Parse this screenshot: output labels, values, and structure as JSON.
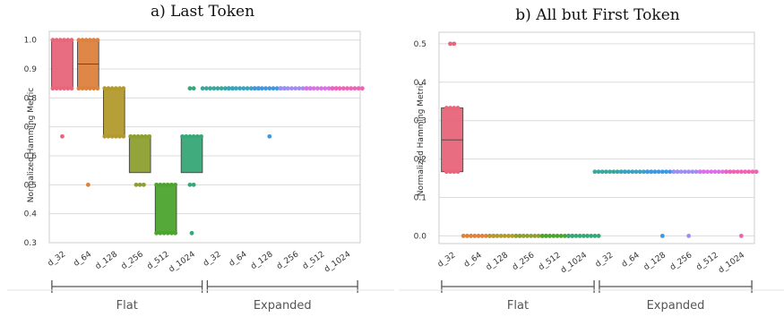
{
  "chart_data": [
    {
      "type": "box+swarm",
      "title": "a) Last Token",
      "ylabel": "Normalized Hamming Metric",
      "xlabel": "",
      "ylim": [
        0.3,
        1.03
      ],
      "yticks": [
        "0.3",
        "0.4",
        "0.5",
        "0.6",
        "0.7",
        "0.8",
        "0.9",
        "1.0"
      ],
      "ytick_values": [
        0.3,
        0.4,
        0.5,
        0.6,
        0.7,
        0.8,
        0.9,
        1.0
      ],
      "categories": [
        "d_32",
        "d_64",
        "d_128",
        "d_256",
        "d_512",
        "d_1024",
        "d_32",
        "d_64",
        "d_128",
        "d_256",
        "d_512",
        "d_1024"
      ],
      "groups": [
        {
          "label": "Flat",
          "from": 0,
          "to": 5
        },
        {
          "label": "Expanded",
          "from": 6,
          "to": 11
        }
      ],
      "grid": true,
      "colors": [
        "#e8657a",
        "#dd813d",
        "#b39a2c",
        "#8c9f2f",
        "#4ca42d",
        "#36a877",
        "#37a89d",
        "#3aa3bd",
        "#3f98e4",
        "#a38cf1",
        "#dc70e8",
        "#f062b6"
      ],
      "boxes": [
        {
          "q1": 0.833,
          "median": 1.0,
          "q3": 1.0
        },
        {
          "q1": 0.833,
          "median": 0.917,
          "q3": 1.0
        },
        {
          "q1": 0.667,
          "median": 0.833,
          "q3": 0.833
        },
        {
          "q1": 0.542,
          "median": 0.667,
          "q3": 0.667
        },
        {
          "q1": 0.333,
          "median": 0.5,
          "q3": 0.5
        },
        {
          "q1": 0.542,
          "median": 0.667,
          "q3": 0.667
        },
        {
          "q1": 0.833,
          "median": 0.833,
          "q3": 0.833
        },
        {
          "q1": 0.833,
          "median": 0.833,
          "q3": 0.833
        },
        {
          "q1": 0.833,
          "median": 0.833,
          "q3": 0.833
        },
        {
          "q1": 0.833,
          "median": 0.833,
          "q3": 0.833
        },
        {
          "q1": 0.833,
          "median": 0.833,
          "q3": 0.833
        },
        {
          "q1": 0.833,
          "median": 0.833,
          "q3": 0.833
        }
      ],
      "points": [
        [
          [
            1.0,
            6
          ],
          [
            0.833,
            6
          ],
          [
            0.667,
            1
          ]
        ],
        [
          [
            1.0,
            6
          ],
          [
            0.833,
            6
          ],
          [
            0.5,
            1
          ]
        ],
        [
          [
            0.833,
            6
          ],
          [
            0.667,
            6
          ]
        ],
        [
          [
            0.667,
            6
          ],
          [
            0.5,
            3
          ]
        ],
        [
          [
            0.5,
            6
          ],
          [
            0.333,
            6
          ]
        ],
        [
          [
            0.833,
            2
          ],
          [
            0.667,
            6
          ],
          [
            0.5,
            2
          ],
          [
            0.333,
            1
          ]
        ],
        [
          [
            0.833,
            9
          ]
        ],
        [
          [
            0.833,
            9
          ]
        ],
        [
          [
            0.833,
            9
          ],
          [
            0.667,
            1
          ]
        ],
        [
          [
            0.833,
            9
          ]
        ],
        [
          [
            0.833,
            9
          ]
        ],
        [
          [
            0.833,
            9
          ]
        ]
      ]
    },
    {
      "type": "box+swarm",
      "title": "b) All but First Token",
      "ylabel": "Normalized Hamming Metric",
      "xlabel": "",
      "ylim": [
        -0.02,
        0.53
      ],
      "yticks": [
        "0.0",
        "0.1",
        "0.2",
        "0.3",
        "0.4",
        "0.5"
      ],
      "ytick_values": [
        0.0,
        0.1,
        0.2,
        0.3,
        0.4,
        0.5
      ],
      "categories": [
        "d_32",
        "d_64",
        "d_128",
        "d_256",
        "d_512",
        "d_1024",
        "d_32",
        "d_64",
        "d_128",
        "d_256",
        "d_512",
        "d_1024"
      ],
      "groups": [
        {
          "label": "Flat",
          "from": 0,
          "to": 5
        },
        {
          "label": "Expanded",
          "from": 6,
          "to": 11
        }
      ],
      "grid": true,
      "colors": [
        "#e8657a",
        "#dd813d",
        "#b39a2c",
        "#8c9f2f",
        "#4ca42d",
        "#36a877",
        "#37a89d",
        "#3aa3bd",
        "#3f98e4",
        "#a38cf1",
        "#dc70e8",
        "#f062b6"
      ],
      "boxes": [
        {
          "q1": 0.167,
          "median": 0.25,
          "q3": 0.333
        },
        {
          "q1": 0.0,
          "median": 0.0,
          "q3": 0.0
        },
        {
          "q1": 0.0,
          "median": 0.0,
          "q3": 0.0
        },
        {
          "q1": 0.0,
          "median": 0.0,
          "q3": 0.0
        },
        {
          "q1": 0.0,
          "median": 0.0,
          "q3": 0.0
        },
        {
          "q1": 0.0,
          "median": 0.0,
          "q3": 0.0
        },
        {
          "q1": 0.167,
          "median": 0.167,
          "q3": 0.167
        },
        {
          "q1": 0.167,
          "median": 0.167,
          "q3": 0.167
        },
        {
          "q1": 0.167,
          "median": 0.167,
          "q3": 0.167
        },
        {
          "q1": 0.167,
          "median": 0.167,
          "q3": 0.167
        },
        {
          "q1": 0.167,
          "median": 0.167,
          "q3": 0.167
        },
        {
          "q1": 0.167,
          "median": 0.167,
          "q3": 0.167
        }
      ],
      "points": [
        [
          [
            0.5,
            2
          ],
          [
            0.333,
            4
          ],
          [
            0.167,
            4
          ]
        ],
        [
          [
            0.0,
            9
          ]
        ],
        [
          [
            0.0,
            9
          ]
        ],
        [
          [
            0.0,
            9
          ]
        ],
        [
          [
            0.0,
            9
          ]
        ],
        [
          [
            0.0,
            9
          ]
        ],
        [
          [
            0.167,
            9
          ]
        ],
        [
          [
            0.167,
            9
          ]
        ],
        [
          [
            0.167,
            9
          ],
          [
            0.0,
            1
          ]
        ],
        [
          [
            0.167,
            9
          ],
          [
            0.0,
            1
          ]
        ],
        [
          [
            0.167,
            9
          ]
        ],
        [
          [
            0.167,
            9
          ],
          [
            0.0,
            1
          ]
        ]
      ]
    }
  ]
}
